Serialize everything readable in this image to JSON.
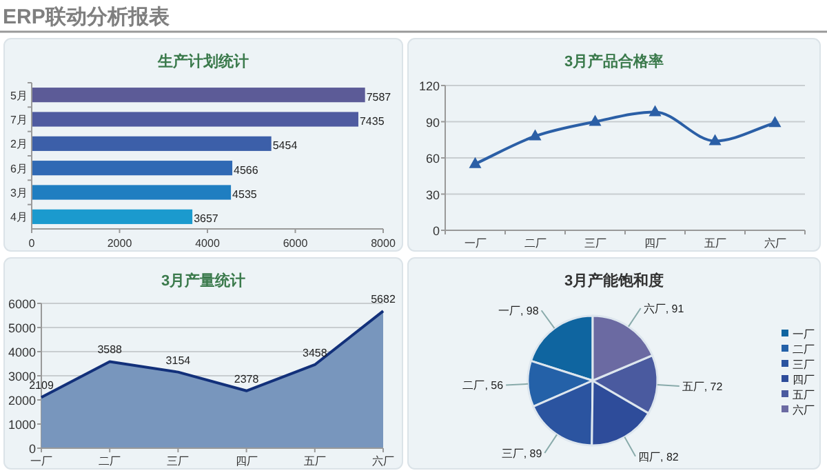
{
  "chart_data": [
    {
      "type": "bar",
      "title": "生产计划统计",
      "orientation": "horizontal",
      "categories": [
        "5月",
        "7月",
        "2月",
        "6月",
        "3月",
        "4月"
      ],
      "values": [
        7587,
        7435,
        5454,
        4566,
        4535,
        3657
      ],
      "colors": [
        "#5c5b97",
        "#4f5ba0",
        "#3c5fa9",
        "#2f69b4",
        "#1f7ec1",
        "#1b9ace"
      ],
      "xlim": [
        0,
        8000
      ],
      "xticks": [
        0,
        2000,
        4000,
        6000,
        8000
      ],
      "data_labels": true,
      "annotations": [
        "ERP联动分析报表"
      ]
    },
    {
      "type": "line",
      "title": "3月产品合格率",
      "categories": [
        "一厂",
        "二厂",
        "三厂",
        "四厂",
        "五厂",
        "六厂"
      ],
      "series": [
        {
          "color": "#2b5fa6",
          "values": [
            55,
            78,
            90,
            98,
            74,
            89
          ]
        }
      ],
      "ylim": [
        0,
        120
      ],
      "yticks": [
        0,
        30,
        60,
        90,
        120
      ],
      "grid": "y",
      "marker": "triangle"
    },
    {
      "type": "area",
      "title": "3月产量统计",
      "categories": [
        "一厂",
        "二厂",
        "三厂",
        "四厂",
        "五厂",
        "六厂"
      ],
      "series": [
        {
          "color": "#7896bd",
          "values": [
            2109,
            3588,
            3154,
            2378,
            3458,
            5682
          ]
        }
      ],
      "ylim": [
        0,
        6000
      ],
      "yticks": [
        0,
        1000,
        2000,
        3000,
        4000,
        5000,
        6000
      ],
      "grid": "y",
      "data_labels": true
    },
    {
      "type": "pie",
      "title": "3月产能饱和度",
      "categories": [
        "一厂",
        "二厂",
        "三厂",
        "四厂",
        "五厂",
        "六厂"
      ],
      "values": [
        98,
        56,
        89,
        82,
        72,
        91
      ],
      "colors": [
        "#0f65a0",
        "#2461a8",
        "#2b54a0",
        "#2e4c9a",
        "#4a5a9f",
        "#6b6aa2"
      ],
      "value_labels": [
        "一厂, 98",
        "二厂, 56",
        "三厂, 89",
        "四厂, 82",
        "五厂, 72",
        "六厂, 91"
      ],
      "legend": "right"
    }
  ]
}
